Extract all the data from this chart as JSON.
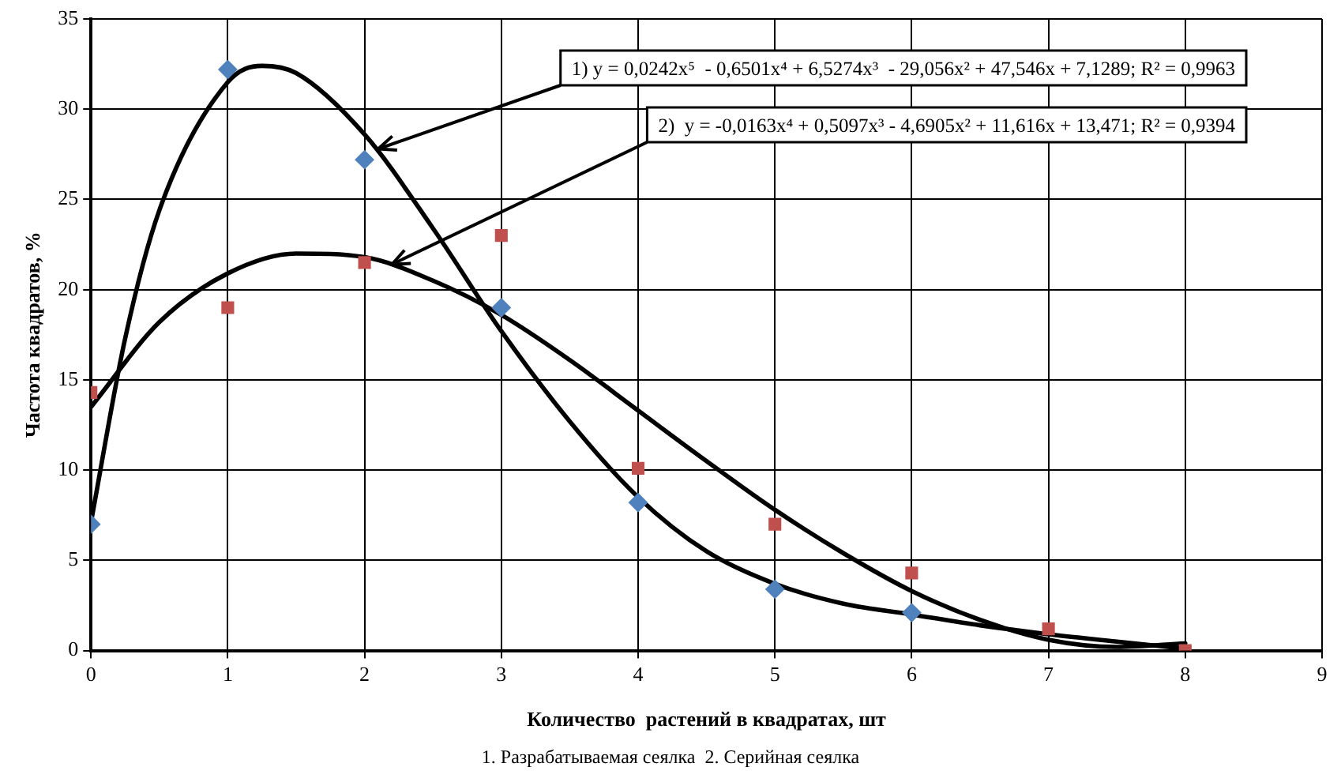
{
  "chart_data": {
    "type": "scatter",
    "xlabel": "Количество  растений в квадратах, шт",
    "ylabel": "Частота квадратов, %",
    "xlim": [
      0,
      9
    ],
    "xticks": [
      0,
      1,
      2,
      3,
      4,
      5,
      6,
      7,
      8,
      9
    ],
    "ylim": [
      0,
      35
    ],
    "yticks": [
      0,
      5,
      10,
      15,
      20,
      25,
      30,
      35
    ],
    "grid": true,
    "legend": false,
    "series": [
      {
        "marker": "diamond",
        "color": "#4f81bd",
        "x": [
          0,
          1,
          2,
          3,
          4,
          5,
          6
        ],
        "values": [
          7,
          32.2,
          27.2,
          19,
          8.2,
          3.4,
          2.1
        ]
      },
      {
        "marker": "square",
        "color": "#c0504d",
        "x": [
          0,
          1,
          2,
          3,
          4,
          5,
          6,
          7,
          8
        ],
        "values": [
          14.3,
          19,
          21.5,
          23,
          10.1,
          7,
          4.3,
          1.2,
          0
        ]
      },
      {
        "type": "line",
        "marker": "none",
        "color": "#000000",
        "x": [
          0,
          0.25,
          0.5,
          1,
          1.25,
          1.5,
          2,
          2.5,
          3,
          3.5,
          4,
          4.5,
          5,
          5.5,
          6,
          6.5,
          7,
          7.5,
          8
        ],
        "values": [
          7.1,
          17.3,
          24.4,
          31.5,
          32.4,
          32,
          28.6,
          23.4,
          17.7,
          12.7,
          8.5,
          5.5,
          3.7,
          2.6,
          2,
          1.4,
          0.9,
          0.5,
          0.1
        ]
      },
      {
        "type": "line",
        "marker": "none",
        "color": "#000000",
        "x": [
          0,
          0.5,
          1,
          1.5,
          2,
          2.5,
          3,
          3.5,
          4,
          4.5,
          5,
          5.5,
          6,
          6.5,
          7,
          7.5,
          8
        ],
        "values": [
          13.5,
          18.2,
          20.9,
          22,
          21.8,
          20.5,
          18.6,
          16.1,
          13.3,
          10.5,
          7.8,
          5.4,
          3.3,
          1.7,
          0.6,
          0.2,
          0.4
        ]
      }
    ],
    "annotations": [
      {
        "text": "1) y = 0,0242x⁵  - 0,6501x⁴ + 6,5274x³  - 29,056x² + 47,546x + 7,1289; R² = 0,9963",
        "x": 2.1,
        "y": 27.8
      },
      {
        "text": "2)  y = -0,0163x⁴ + 0,5097x³ - 4,6905x² + 11,616x + 13,471; R² = 0,9394",
        "x": 2.2,
        "y": 21.4
      },
      "1. Разрабатываемая сеялка  2. Серийная сеялка"
    ]
  }
}
